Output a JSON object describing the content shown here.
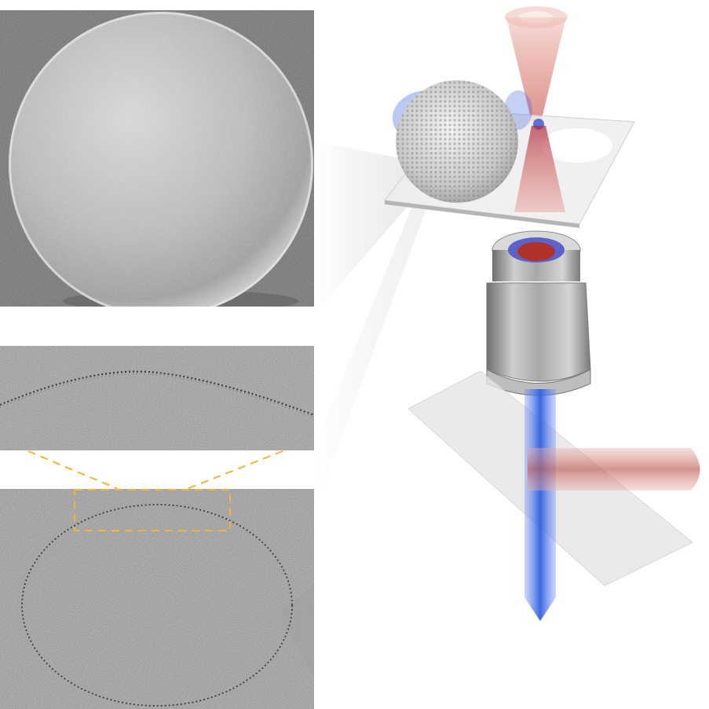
{
  "figure": {
    "panels": [
      {
        "id": "sem",
        "kind": "SEM micrograph of a particle-coated sphere"
      },
      {
        "id": "tem-zoom",
        "kind": "magnified TEM section of shell edge"
      },
      {
        "id": "tem-full",
        "kind": "TEM image of thin-shell capsule with dashed inset box"
      },
      {
        "id": "setup",
        "kind": "optical trapping and scattering schematic"
      }
    ]
  },
  "colors": {
    "inset_box": "#f2b43a",
    "laser_red": "#c0392b",
    "light_blue": "#2f5fe0",
    "objective_gray": "#9a9a9a",
    "glass_plate": "#e6e6e6"
  },
  "icons": {
    "objective": "microscope-objective-icon",
    "sphere": "bead-sphere-icon"
  }
}
